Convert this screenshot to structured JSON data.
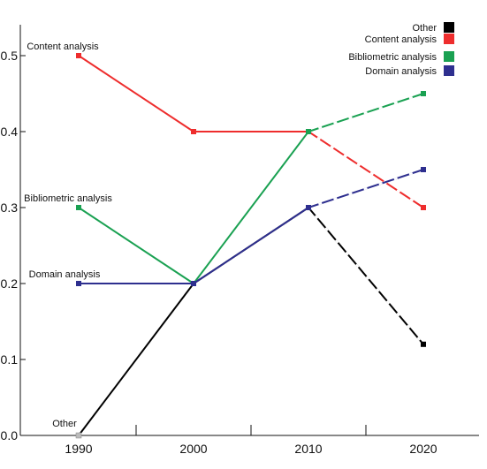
{
  "chart_data": {
    "type": "line",
    "x": [
      1990,
      2000,
      2010,
      2020
    ],
    "xlim": [
      1990,
      2025
    ],
    "ylim": [
      0,
      0.5
    ],
    "xticks": [
      "1990",
      "2000",
      "2010",
      "2020"
    ],
    "yticks": [
      "0.0",
      "0.1",
      "0.2",
      "0.3",
      "0.4",
      "0.5"
    ],
    "dashed_segment": [
      2010,
      2020
    ],
    "grid": false,
    "legend_position": "top-right",
    "series": [
      {
        "name": "Other",
        "color": "#000000",
        "values": [
          0.0,
          0.2,
          0.3,
          0.12
        ],
        "start_label": "Other"
      },
      {
        "name": "Content analysis",
        "color": "#ee2d2d",
        "values": [
          0.5,
          0.4,
          0.4,
          0.3
        ],
        "start_label": "Content analysis"
      },
      {
        "name": "Bibliometric analysis",
        "color": "#1aa152",
        "values": [
          0.3,
          0.2,
          0.4,
          0.45
        ],
        "start_label": "Bibliometric analysis"
      },
      {
        "name": "Domain analysis",
        "color": "#2e2f8f",
        "values": [
          0.2,
          0.2,
          0.3,
          0.35
        ],
        "start_label": "Domain analysis"
      }
    ]
  }
}
